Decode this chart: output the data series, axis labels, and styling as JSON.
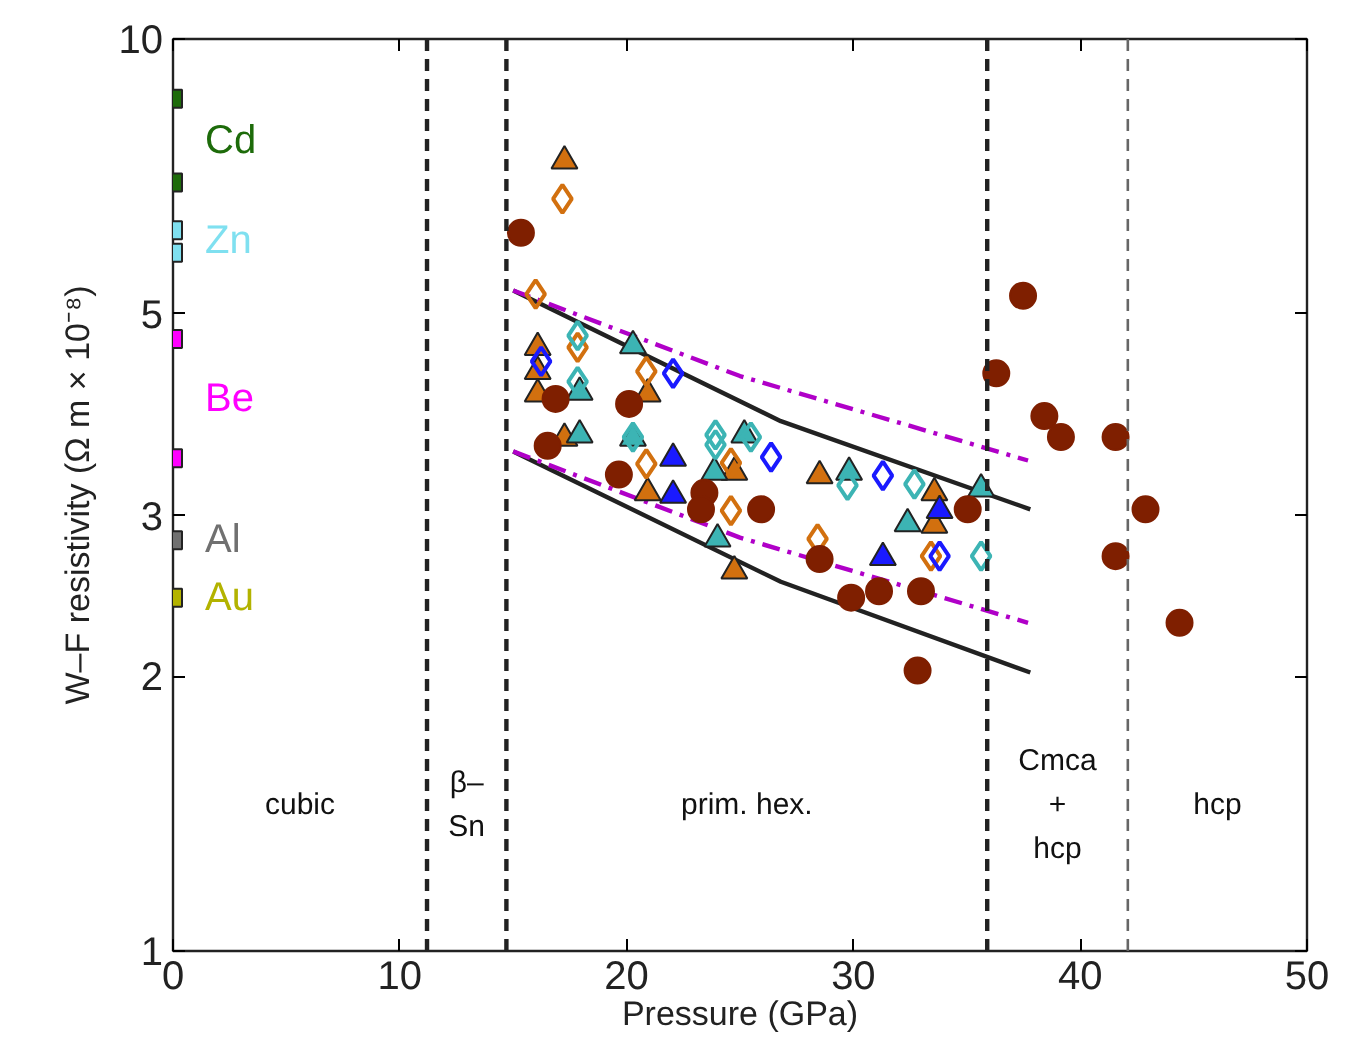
{
  "chart_data": {
    "type": "scatter",
    "xlabel": "Pressure (GPa)",
    "ylabel": "W–F resistivity (Ω m × 10⁻⁸)",
    "log": "y",
    "grid": false,
    "xlim": [
      0,
      50
    ],
    "xticks": [
      0,
      10,
      20,
      30,
      40,
      50
    ],
    "ylim": [
      1,
      10
    ],
    "yticks": [
      1,
      2,
      3,
      5,
      10
    ],
    "series": [
      {
        "name": "Cd",
        "color": "#1d6b0a",
        "marker": "square",
        "x": [
          0,
          0
        ],
        "values": [
          8.6,
          6.96
        ]
      },
      {
        "name": "Zn",
        "color": "#7fe0f0",
        "marker": "square",
        "x": [
          0,
          0
        ],
        "values": [
          6.17,
          5.83
        ]
      },
      {
        "name": "Be",
        "color": "#ff00ff",
        "marker": "square",
        "x": [
          0,
          0
        ],
        "values": [
          4.69,
          3.47
        ]
      },
      {
        "name": "Al",
        "color": "#707070",
        "marker": "square",
        "x": [
          0
        ],
        "values": [
          2.82
        ]
      },
      {
        "name": "Au",
        "color": "#b3b300",
        "marker": "square",
        "x": [
          0
        ],
        "values": [
          2.44
        ]
      },
      {
        "type": "line",
        "color": "#222222",
        "line_style": "solid",
        "x": [
          15.0,
          26.8,
          37.8
        ],
        "values": [
          5.3,
          3.81,
          3.05
        ]
      },
      {
        "type": "line",
        "color": "#222222",
        "line_style": "solid",
        "x": [
          15.0,
          26.8,
          37.8
        ],
        "values": [
          3.53,
          2.54,
          2.02
        ]
      },
      {
        "type": "line",
        "color": "#b000c8",
        "line_style": "dashdot",
        "x": [
          15.0,
          25.0,
          37.7
        ],
        "values": [
          5.3,
          4.27,
          3.45
        ]
      },
      {
        "type": "line",
        "color": "#b000c8",
        "line_style": "dashdot",
        "x": [
          15.0,
          25.0,
          37.7
        ],
        "values": [
          3.53,
          2.84,
          2.29
        ]
      },
      {
        "color": "#d2700f",
        "marker": "triangle",
        "x": [
          17.26,
          16.08,
          16.08,
          16.08,
          17.26,
          20.93,
          20.93,
          24.75,
          24.75,
          28.51,
          33.57,
          33.57
        ],
        "values": [
          7.35,
          4.59,
          4.32,
          4.08,
          3.65,
          4.08,
          3.18,
          3.35,
          2.61,
          3.32,
          3.18,
          2.93
        ]
      },
      {
        "color": "#d2700f",
        "marker": "diamond",
        "x": [
          17.17,
          15.99,
          17.84,
          20.87,
          20.87,
          24.6,
          24.6,
          28.42,
          33.42
        ],
        "values": [
          6.68,
          5.25,
          4.59,
          4.32,
          3.42,
          3.43,
          3.04,
          2.83,
          2.71
        ]
      },
      {
        "color": "#3cb4b4",
        "marker": "triangle",
        "x": [
          20.28,
          17.93,
          17.93,
          20.28,
          24.01,
          25.19,
          23.87,
          29.81,
          32.39,
          35.63
        ],
        "values": [
          4.61,
          4.1,
          3.68,
          3.65,
          2.83,
          3.68,
          3.35,
          3.35,
          2.94,
          3.21
        ]
      },
      {
        "color": "#3cb4b4",
        "marker": "diamond",
        "x": [
          17.84,
          17.84,
          20.28,
          23.92,
          23.92,
          25.48,
          29.74,
          32.69,
          35.63
        ],
        "values": [
          4.73,
          4.21,
          3.66,
          3.68,
          3.59,
          3.66,
          3.24,
          3.25,
          2.71
        ]
      },
      {
        "color": "#1a1aff",
        "marker": "diamond",
        "x": [
          16.23,
          22.05,
          26.37,
          31.3,
          33.8
        ],
        "values": [
          4.43,
          4.3,
          3.48,
          3.32,
          2.71
        ]
      },
      {
        "color": "#1a1aff",
        "marker": "triangle",
        "x": [
          22.05,
          22.05,
          31.3,
          33.8
        ],
        "values": [
          3.47,
          3.16,
          2.7,
          3.04
        ]
      },
      {
        "color": "#7f1f00",
        "marker": "circle",
        "x": [
          15.34,
          19.66,
          23.43,
          25.93,
          29.9,
          32.83,
          37.48,
          36.3,
          38.42,
          39.15,
          41.56,
          42.88,
          41.56,
          44.38
        ],
        "values": [
          6.13,
          3.33,
          3.18,
          3.05,
          2.44,
          2.03,
          5.23,
          4.3,
          3.86,
          3.66,
          3.66,
          3.05,
          2.71,
          2.29
        ]
      },
      {
        "color": "#7f1f00",
        "marker": "circle",
        "x": [
          16.87,
          16.52,
          20.11,
          23.28,
          28.51,
          31.13,
          32.98,
          35.04
        ],
        "values": [
          4.03,
          3.58,
          3.98,
          3.05,
          2.69,
          2.48,
          2.48,
          3.05
        ]
      }
    ],
    "ref_lines": [
      {
        "axis": "x",
        "value": 11.2,
        "color": "#222222",
        "line_style": "dashed"
      },
      {
        "axis": "x",
        "value": 14.7,
        "color": "#222222",
        "line_style": "dashed"
      },
      {
        "axis": "x",
        "value": 35.9,
        "color": "#222222",
        "line_style": "dashed"
      },
      {
        "axis": "x",
        "value": 42.1,
        "color": "#666666",
        "line_style": "dashed"
      }
    ],
    "annotations": [
      "cubic",
      "β–\nSn",
      "prim. hex.",
      "Cmca\n+\nhcp",
      "hcp"
    ]
  }
}
